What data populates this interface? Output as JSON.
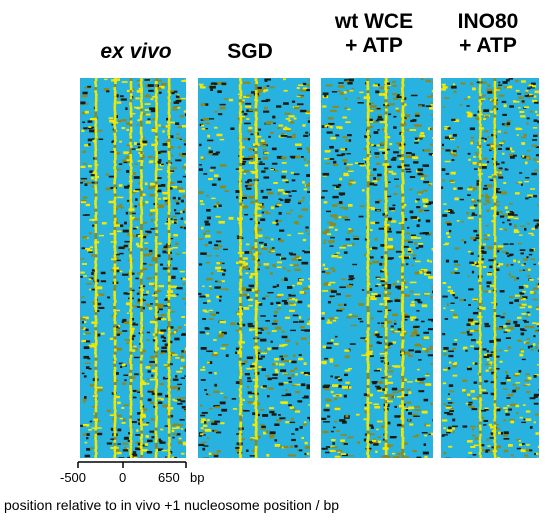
{
  "panels": [
    {
      "title_lines": [
        "ex vivo"
      ],
      "stripes": [
        0.15,
        0.33,
        0.48,
        0.58,
        0.72,
        0.84
      ]
    },
    {
      "title_lines": [
        "SGD"
      ],
      "stripes": [
        0.38,
        0.52
      ]
    },
    {
      "title_lines": [
        "wt WCE",
        "+ ATP"
      ],
      "stripes": [
        0.42,
        0.58,
        0.73
      ]
    },
    {
      "title_lines": [
        "INO80",
        "+ ATP"
      ],
      "stripes": [
        0.4,
        0.55
      ]
    }
  ],
  "colors": {
    "background_blue": "#27b2e0",
    "signal_yellow": "#f5e800",
    "noise_dark": "#1a1a10",
    "noise_olive": "#8a8a20"
  },
  "axis": {
    "ticks": [
      "-500",
      "0",
      "650"
    ],
    "unit": "bp"
  },
  "caption": "position relative to in vivo +1 nucleosome position / bp"
}
